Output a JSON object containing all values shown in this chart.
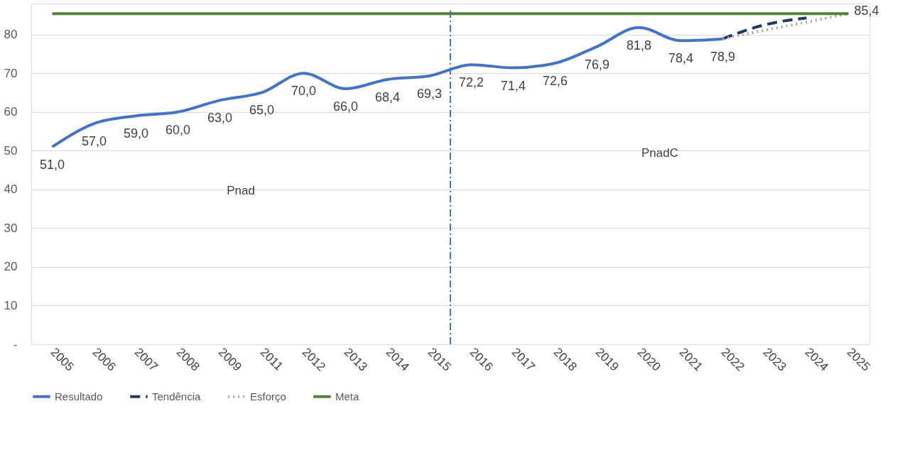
{
  "chart_data": {
    "type": "line",
    "categories": [
      "2005",
      "2006",
      "2007",
      "2008",
      "2009",
      "2011",
      "2012",
      "2013",
      "2014",
      "2015",
      "2016",
      "2017",
      "2018",
      "2019",
      "2020",
      "2021",
      "2022",
      "2023",
      "2024",
      "2025"
    ],
    "series": [
      {
        "name": "Resultado",
        "color": "#4472c4",
        "line_style": "solid",
        "values": [
          51.0,
          57.0,
          59.0,
          60.0,
          63.0,
          65.0,
          70.0,
          66.0,
          68.4,
          69.3,
          72.2,
          71.4,
          72.6,
          76.9,
          81.8,
          78.4,
          78.9,
          null,
          null,
          null
        ],
        "value_labels": [
          "51,0",
          "57,0",
          "59,0",
          "60,0",
          "63,0",
          "65,0",
          "70,0",
          "66,0",
          "68,4",
          "69,3",
          "72,2",
          "71,4",
          "72,6",
          "76,9",
          "81,8",
          "78,4",
          "78,9",
          null,
          null,
          null
        ]
      },
      {
        "name": "Tendência",
        "color": "#1f3864",
        "line_style": "dashed",
        "values": [
          null,
          null,
          null,
          null,
          null,
          null,
          null,
          null,
          null,
          null,
          null,
          null,
          null,
          null,
          null,
          null,
          78.9,
          82.5,
          84.3,
          null
        ]
      },
      {
        "name": "Esforço",
        "color": "#a6a6a6",
        "line_style": "dotted",
        "values": [
          null,
          null,
          null,
          null,
          null,
          null,
          null,
          null,
          null,
          null,
          null,
          null,
          null,
          null,
          null,
          null,
          78.9,
          81.1,
          83.2,
          85.4
        ]
      },
      {
        "name": "Meta",
        "color": "#548235",
        "line_style": "solid",
        "values": [
          85.4,
          85.4,
          85.4,
          85.4,
          85.4,
          85.4,
          85.4,
          85.4,
          85.4,
          85.4,
          85.4,
          85.4,
          85.4,
          85.4,
          85.4,
          85.4,
          85.4,
          85.4,
          85.4,
          85.4
        ],
        "value_labels": [
          null,
          null,
          null,
          null,
          null,
          null,
          null,
          null,
          null,
          null,
          null,
          null,
          null,
          null,
          null,
          null,
          null,
          null,
          null,
          "85,4"
        ]
      }
    ],
    "ylim": [
      0,
      88
    ],
    "yticks": [
      {
        "value": 0,
        "label": "-"
      },
      10,
      20,
      30,
      40,
      50,
      60,
      70,
      80
    ],
    "grid": "y",
    "legend": "bottom",
    "marker": "none",
    "ref_lines": [
      {
        "axis": "x",
        "value": "2016",
        "color": "#4472c4",
        "line_style": "dashdot"
      }
    ],
    "annotations": [
      "Pnad",
      "PnadC"
    ]
  }
}
